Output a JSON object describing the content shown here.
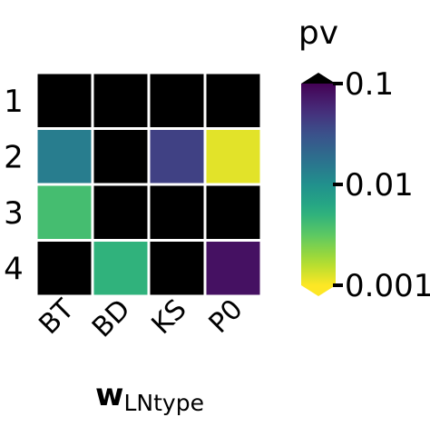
{
  "chart_data": {
    "type": "heatmap",
    "title": "",
    "xlabel": "w",
    "xlabel_subscript": "LNtype",
    "ylabel": "",
    "x_categories": [
      "BT",
      "BD",
      "KS",
      "P0"
    ],
    "y_categories": [
      "1",
      "2",
      "3",
      "4"
    ],
    "values": [
      [
        null,
        null,
        null,
        null
      ],
      [
        0.014,
        null,
        0.04,
        0.0012
      ],
      [
        0.004,
        null,
        null,
        null
      ],
      [
        null,
        0.005,
        null,
        0.08
      ]
    ],
    "missing_color": "#000000",
    "colorbar": {
      "label": "pv",
      "scale": "log",
      "range": [
        0.001,
        0.1
      ],
      "ticks": [
        0.1,
        0.01,
        0.001
      ],
      "tick_labels": [
        "0.1",
        "0.01",
        "0.001"
      ],
      "extend": "both",
      "over_color": "#000000",
      "under_color": "#fde725",
      "colormap": "viridis-reversed"
    }
  }
}
